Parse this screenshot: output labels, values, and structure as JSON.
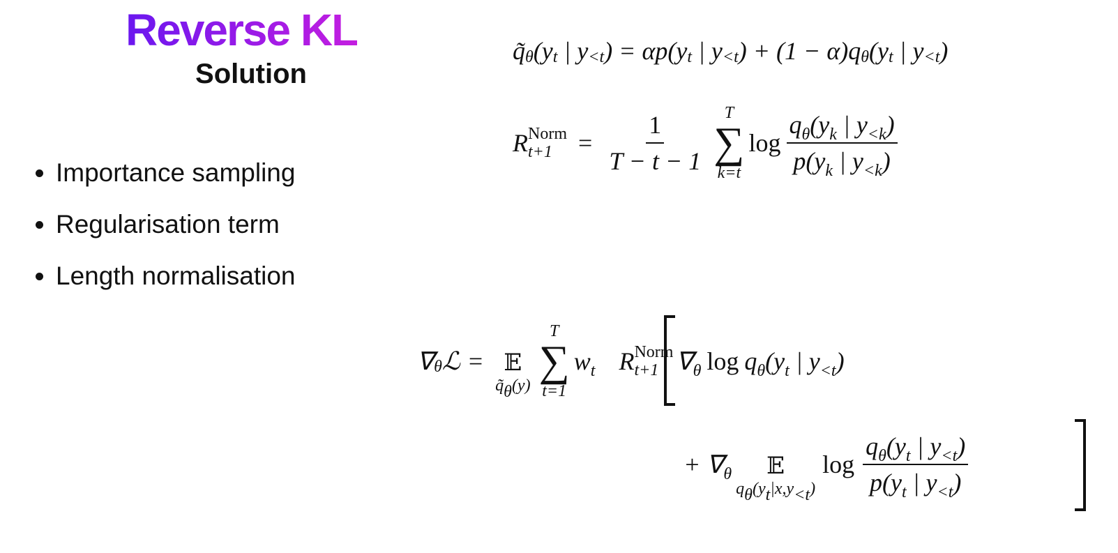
{
  "title": "Reverse KL",
  "subtitle": "Solution",
  "bullets": [
    "Importance sampling",
    "Regularisation term",
    "Length normalisation"
  ],
  "equations": [
    {
      "tokens": [
        "q̃",
        "θ",
        "(y",
        "t",
        " | y",
        "<t",
        ") = αp(y",
        "t",
        " | y",
        "<t",
        ") + (1 − α)q",
        "θ",
        "(y",
        "t",
        " | y",
        "<t",
        ")"
      ]
    },
    {
      "lhs": [
        "R",
        "Norm",
        "t+1"
      ],
      "equals": "=",
      "fraction": {
        "numerator": "1",
        "denominator": "T − t − 1"
      },
      "sum": {
        "symbol": "∑",
        "upper": "T",
        "lower": "k=t"
      },
      "log": "log",
      "ratio": {
        "numerator": [
          "q",
          "θ",
          "(y",
          "k",
          " | y",
          "<k",
          ")"
        ],
        "denominator": [
          "p(y",
          "k",
          " | y",
          "<k",
          ")"
        ]
      }
    },
    {
      "lhs": [
        "∇",
        "θ",
        "ℒ"
      ],
      "equals": "=",
      "expectation": {
        "symbol": "𝔼",
        "lower": [
          "q̃",
          "θ",
          "(y)"
        ]
      },
      "sum": {
        "symbol": "∑",
        "upper": "T",
        "lower": "t=1"
      },
      "weight": [
        "w",
        "t"
      ],
      "line1": {
        "r": [
          "R",
          "Norm",
          "t+1"
        ],
        "grad": [
          "∇",
          "θ"
        ],
        "log": "log",
        "term": [
          "q",
          "θ",
          "(y",
          "t",
          " | y",
          "<t",
          ")"
        ]
      },
      "line2": {
        "grad": [
          "+ ∇",
          "θ"
        ],
        "expectation": {
          "symbol": "𝔼",
          "lower": [
            "q",
            "θ",
            "(y",
            "t",
            "|x,y",
            "<t",
            ")"
          ]
        },
        "log": "log",
        "ratio": {
          "numerator": [
            "q",
            "θ",
            "(y",
            "t",
            " | y",
            "<t",
            ")"
          ],
          "denominator": [
            "p(y",
            "t",
            " | y",
            "<t",
            ")"
          ]
        }
      }
    }
  ]
}
